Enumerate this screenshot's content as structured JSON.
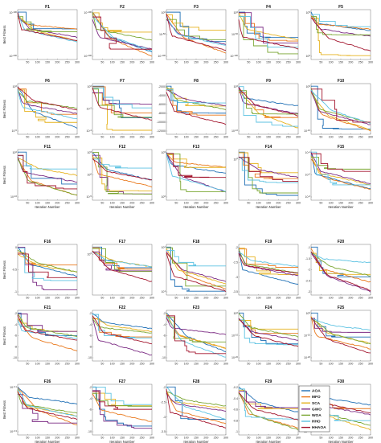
{
  "figure": {
    "ylabel": "Best Fitness",
    "xlabel": "Iteration Number",
    "x_ticks": [
      50,
      100,
      150,
      200,
      250,
      300
    ]
  },
  "legend": [
    {
      "name": "AOA",
      "color": "#1f6fb5"
    },
    {
      "name": "MFO",
      "color": "#e9781b"
    },
    {
      "name": "SCA",
      "color": "#e6b21f"
    },
    {
      "name": "GWO",
      "color": "#7b2a83"
    },
    {
      "name": "WOA",
      "color": "#7aa631"
    },
    {
      "name": "HHO",
      "color": "#5cc2e2"
    },
    {
      "name": "HHAOA",
      "color": "#a3152d"
    }
  ],
  "chart_data": [
    {
      "title": "F1",
      "type": "line",
      "yscale": "log",
      "ytick_labels": [
        "10^-100",
        "10^-200"
      ],
      "xlim": [
        0,
        300
      ]
    },
    {
      "title": "F2",
      "type": "line",
      "yscale": "log",
      "ytick_labels": [
        "10^-100",
        "10^-200"
      ],
      "xlim": [
        0,
        300
      ]
    },
    {
      "title": "F3",
      "type": "line",
      "yscale": "log",
      "ytick_labels": [
        "10^0",
        "10^-50",
        "10^-100"
      ],
      "xlim": [
        0,
        300
      ]
    },
    {
      "title": "F4",
      "type": "line",
      "yscale": "log",
      "ytick_labels": [
        "10^0",
        "10^-50",
        "10^-100"
      ],
      "xlim": [
        0,
        300
      ]
    },
    {
      "title": "F5",
      "type": "line",
      "yscale": "log",
      "ytick_labels": [
        "10^5",
        "10^0"
      ],
      "xlim": [
        0,
        300
      ]
    },
    {
      "title": "F6",
      "type": "line",
      "yscale": "log",
      "ytick_labels": [
        "10^0",
        "10^-5"
      ],
      "xlim": [
        0,
        300
      ]
    },
    {
      "title": "F7",
      "type": "line",
      "yscale": "log",
      "ytick_labels": [
        "10^0",
        "10^-2",
        "10^-4"
      ],
      "xlim": [
        0,
        300
      ]
    },
    {
      "title": "F8",
      "type": "line",
      "yscale": "linear",
      "ytick_labels": [
        "-2000",
        "-4000",
        "-6000",
        "-8000",
        "-10000",
        "-12000"
      ],
      "xlim": [
        0,
        300
      ]
    },
    {
      "title": "F9",
      "type": "line",
      "yscale": "log",
      "ytick_labels": [
        "10^0",
        "10^-10"
      ],
      "xlim": [
        0,
        300
      ]
    },
    {
      "title": "F10",
      "type": "line",
      "yscale": "log",
      "ytick_labels": [
        "10^0",
        "10^-10"
      ],
      "xlim": [
        0,
        300
      ]
    },
    {
      "title": "F11",
      "type": "line",
      "yscale": "log",
      "ytick_labels": [
        "10^0",
        "10^-10"
      ],
      "xlim": [
        0,
        300
      ]
    },
    {
      "title": "F12",
      "type": "line",
      "yscale": "log",
      "ytick_labels": [
        "10^5",
        "10^0",
        "10^-5"
      ],
      "xlim": [
        0,
        300
      ]
    },
    {
      "title": "F13",
      "type": "line",
      "yscale": "log",
      "ytick_labels": [
        "10^5",
        "10^0"
      ],
      "xlim": [
        0,
        300
      ]
    },
    {
      "title": "F14",
      "type": "line",
      "yscale": "log",
      "ytick_labels": [
        "10^0"
      ],
      "xlim": [
        0,
        300
      ]
    },
    {
      "title": "F15",
      "type": "line",
      "yscale": "log",
      "ytick_labels": [
        "10^-1",
        "10^-2",
        "10^-3"
      ],
      "xlim": [
        0,
        300
      ]
    },
    {
      "title": "F16",
      "type": "line",
      "yscale": "linear",
      "ytick_labels": [
        "0",
        "-0.5",
        "-1"
      ],
      "xlim": [
        0,
        300
      ]
    },
    {
      "title": "F17",
      "type": "line",
      "yscale": "log",
      "ytick_labels": [
        "10^0"
      ],
      "xlim": [
        0,
        300
      ]
    },
    {
      "title": "F18",
      "type": "line",
      "yscale": "log",
      "ytick_labels": [
        "10^2",
        "10^1"
      ],
      "xlim": [
        0,
        300
      ]
    },
    {
      "title": "F19",
      "type": "line",
      "yscale": "linear",
      "ytick_labels": [
        "-2",
        "-2.5",
        "-3",
        "-3.5"
      ],
      "xlim": [
        0,
        300
      ]
    },
    {
      "title": "F20",
      "type": "line",
      "yscale": "linear",
      "ytick_labels": [
        "-1",
        "-1.5",
        "-2",
        "-2.5",
        "-3"
      ],
      "xlim": [
        0,
        300
      ]
    },
    {
      "title": "F21",
      "type": "line",
      "yscale": "linear",
      "ytick_labels": [
        "-2",
        "-4",
        "-6",
        "-8",
        "-10"
      ],
      "xlim": [
        0,
        300
      ]
    },
    {
      "title": "F22",
      "type": "line",
      "yscale": "linear",
      "ytick_labels": [
        "-2",
        "-4",
        "-6",
        "-8",
        "-10"
      ],
      "xlim": [
        0,
        300
      ]
    },
    {
      "title": "F23",
      "type": "line",
      "yscale": "linear",
      "ytick_labels": [
        "-2",
        "-4",
        "-6",
        "-8",
        "-10"
      ],
      "xlim": [
        0,
        300
      ]
    },
    {
      "title": "F24",
      "type": "line",
      "yscale": "log",
      "ytick_labels": [
        "10^0",
        "10^-10",
        "10^-20"
      ],
      "xlim": [
        0,
        300
      ]
    },
    {
      "title": "F25",
      "type": "line",
      "yscale": "log",
      "ytick_labels": [
        "10^0",
        "10^-10",
        "10^-20"
      ],
      "xlim": [
        0,
        300
      ]
    },
    {
      "title": "F26",
      "type": "line",
      "yscale": "log",
      "ytick_labels": [
        "10^-0.1",
        "10^-0.3"
      ],
      "xlim": [
        0,
        300
      ]
    },
    {
      "title": "F27",
      "type": "line",
      "yscale": "linear",
      "ytick_labels": [
        "-2",
        "-4",
        "-6",
        "-8",
        "-10"
      ],
      "xlim": [
        0,
        300
      ]
    },
    {
      "title": "F28",
      "type": "line",
      "yscale": "linear",
      "ytick_labels": [
        "-2",
        "-2.5",
        "-3",
        "-3.5"
      ],
      "xlim": [
        0,
        300
      ]
    },
    {
      "title": "F29",
      "type": "line",
      "yscale": "linear",
      "ytick_labels": [
        "-0.2",
        "-0.4",
        "-0.6",
        "-0.8",
        "-1"
      ],
      "xlim": [
        0,
        300
      ]
    },
    {
      "title": "F30",
      "type": "line",
      "yscale": "log",
      "ytick_labels": [
        "10^0",
        "10^-10",
        "10^-20"
      ],
      "xlim": [
        0,
        300
      ]
    }
  ]
}
